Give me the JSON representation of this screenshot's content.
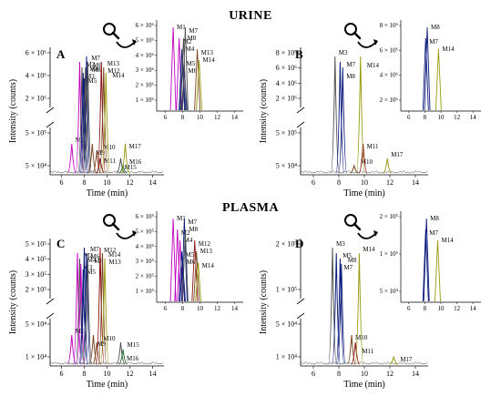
{
  "sections": [
    "URINE",
    "PLASMA"
  ],
  "xlabel": "Time (min)",
  "ylabel": "Intensity (counts)",
  "colors": {
    "magenta": "#c000c0",
    "navy": "#0a1a7a",
    "olive": "#9a9a10",
    "brown": "#7a4520",
    "darkred": "#8a1010",
    "green": "#1d6a2a",
    "gray": "#505050",
    "black": "#000000"
  },
  "chart_data": [
    {
      "type": "line",
      "panel": "A",
      "section": "URINE",
      "x_ticks": [
        "6",
        "8",
        "10",
        "12",
        "14"
      ],
      "y_ticks_upper": [
        "2 × 10⁶",
        "4 × 10⁶",
        "6 × 10⁶"
      ],
      "y_ticks_lower": [
        "5 × 10⁴",
        "5 × 10⁵"
      ],
      "peaks": [
        {
          "label": "M1",
          "time": 6.9,
          "color": "magenta"
        },
        {
          "label": "M2",
          "time": 7.6,
          "color": "magenta"
        },
        {
          "label": "M3",
          "time": 7.8,
          "color": "gray"
        },
        {
          "label": "M4",
          "time": 7.9,
          "color": "navy"
        },
        {
          "label": "M5",
          "time": 8.0,
          "color": "navy"
        },
        {
          "label": "M6",
          "time": 8.2,
          "color": "navy"
        },
        {
          "label": "M7",
          "time": 8.3,
          "color": "gray"
        },
        {
          "label": "M8",
          "time": 8.1,
          "color": "gray"
        },
        {
          "label": "M9",
          "time": 8.7,
          "color": "brown"
        },
        {
          "label": "M10",
          "time": 9.1,
          "color": "brown"
        },
        {
          "label": "M11",
          "time": 9.4,
          "color": "darkred"
        },
        {
          "label": "M12",
          "time": 9.5,
          "color": "darkred"
        },
        {
          "label": "M13",
          "time": 9.7,
          "color": "brown"
        },
        {
          "label": "M14",
          "time": 9.9,
          "color": "olive"
        },
        {
          "label": "M15",
          "time": 11.2,
          "color": "gray"
        },
        {
          "label": "M16",
          "time": 11.4,
          "color": "green"
        },
        {
          "label": "M17",
          "time": 11.6,
          "color": "olive"
        }
      ],
      "inset": {
        "x_ticks": [
          "6",
          "8",
          "10",
          "12",
          "14"
        ],
        "y_ticks": [
          "1 × 10⁶",
          "2 × 10⁶",
          "3 × 10⁶",
          "4 × 10⁶",
          "5 × 10⁶",
          "6 × 10⁶"
        ],
        "labels": [
          "M1",
          "M2",
          "M4",
          "M5",
          "M6",
          "M7",
          "M8",
          "M13",
          "M14"
        ]
      }
    },
    {
      "type": "line",
      "panel": "B",
      "section": "URINE",
      "x_ticks": [
        "6",
        "8",
        "10",
        "12",
        "14"
      ],
      "y_ticks_upper": [
        "2 × 10⁶",
        "4 × 10⁶",
        "6 × 10⁶",
        "8 × 10⁶"
      ],
      "y_ticks_lower": [
        "5 × 10⁴",
        "5 × 10⁵"
      ],
      "peaks": [
        {
          "label": "M3",
          "time": 7.7,
          "color": "gray"
        },
        {
          "label": "M7",
          "time": 8.1,
          "color": "navy"
        },
        {
          "label": "M8",
          "time": 8.3,
          "color": "navy"
        },
        {
          "label": "M10",
          "time": 9.2,
          "color": "brown"
        },
        {
          "label": "M11",
          "time": 9.9,
          "color": "darkred"
        },
        {
          "label": "M14",
          "time": 9.7,
          "color": "olive"
        },
        {
          "label": "M17",
          "time": 11.8,
          "color": "olive"
        }
      ],
      "inset": {
        "x_ticks": [
          "6",
          "8",
          "10",
          "12",
          "14"
        ],
        "y_ticks": [
          "2 × 10⁶",
          "4 × 10⁶",
          "6 × 10⁶",
          "8 × 10⁶"
        ],
        "labels": [
          "M8",
          "M7",
          "M14"
        ]
      }
    },
    {
      "type": "line",
      "panel": "C",
      "section": "PLASMA",
      "x_ticks": [
        "6",
        "8",
        "10",
        "12",
        "14"
      ],
      "y_ticks_upper": [
        "2 × 10⁵",
        "3 × 10⁵",
        "4 × 10⁵",
        "5 × 10⁵"
      ],
      "y_ticks_lower": [
        "1 × 10⁴",
        "5 × 10⁴"
      ],
      "peaks": [
        {
          "label": "M1",
          "time": 6.9,
          "color": "magenta"
        },
        {
          "label": "M2",
          "time": 7.4,
          "color": "magenta"
        },
        {
          "label": "M3",
          "time": 7.6,
          "color": "gray"
        },
        {
          "label": "M4",
          "time": 7.7,
          "color": "magenta"
        },
        {
          "label": "M5",
          "time": 7.9,
          "color": "navy"
        },
        {
          "label": "M6",
          "time": 8.0,
          "color": "navy"
        },
        {
          "label": "M7",
          "time": 8.2,
          "color": "navy"
        },
        {
          "label": "M8",
          "time": 8.3,
          "color": "gray"
        },
        {
          "label": "M9",
          "time": 8.8,
          "color": "brown"
        },
        {
          "label": "M10",
          "time": 9.1,
          "color": "brown"
        },
        {
          "label": "M12",
          "time": 9.4,
          "color": "darkred"
        },
        {
          "label": "M13",
          "time": 9.6,
          "color": "brown"
        },
        {
          "label": "M14",
          "time": 9.8,
          "color": "olive"
        },
        {
          "label": "M15",
          "time": 11.2,
          "color": "gray"
        },
        {
          "label": "M16",
          "time": 11.4,
          "color": "green"
        }
      ],
      "inset": {
        "x_ticks": [
          "6",
          "8",
          "10",
          "12",
          "14"
        ],
        "y_ticks": [
          "1 × 10⁵",
          "2 × 10⁵",
          "3 × 10⁵",
          "4 × 10⁵",
          "5 × 10⁵",
          "6 × 10⁵"
        ],
        "labels": [
          "M1",
          "M2",
          "M4",
          "M5",
          "M6",
          "M7",
          "M8",
          "M12",
          "M13",
          "M14"
        ]
      }
    },
    {
      "type": "line",
      "panel": "D",
      "section": "PLASMA",
      "x_ticks": [
        "6",
        "8",
        "10",
        "12",
        "14"
      ],
      "y_ticks_upper": [
        "1 × 10⁵",
        "2 × 10⁵"
      ],
      "y_ticks_lower": [
        "1 × 10⁴",
        "5 × 10⁴"
      ],
      "peaks": [
        {
          "label": "M3",
          "time": 7.5,
          "color": "gray"
        },
        {
          "label": "M5",
          "time": 7.8,
          "color": "navy"
        },
        {
          "label": "M7",
          "time": 8.1,
          "color": "navy"
        },
        {
          "label": "M8",
          "time": 8.2,
          "color": "navy"
        },
        {
          "label": "M10",
          "time": 9.0,
          "color": "brown"
        },
        {
          "label": "M11",
          "time": 9.3,
          "color": "darkred"
        },
        {
          "label": "M14",
          "time": 9.6,
          "color": "olive"
        },
        {
          "label": "M17",
          "time": 12.3,
          "color": "olive"
        }
      ],
      "inset": {
        "x_ticks": [
          "6",
          "8",
          "10",
          "12",
          "14"
        ],
        "y_ticks": [
          "5 × 10⁴",
          "1 × 10⁵",
          "2 × 10⁵"
        ],
        "labels": [
          "M8",
          "M7",
          "M14"
        ]
      }
    }
  ]
}
